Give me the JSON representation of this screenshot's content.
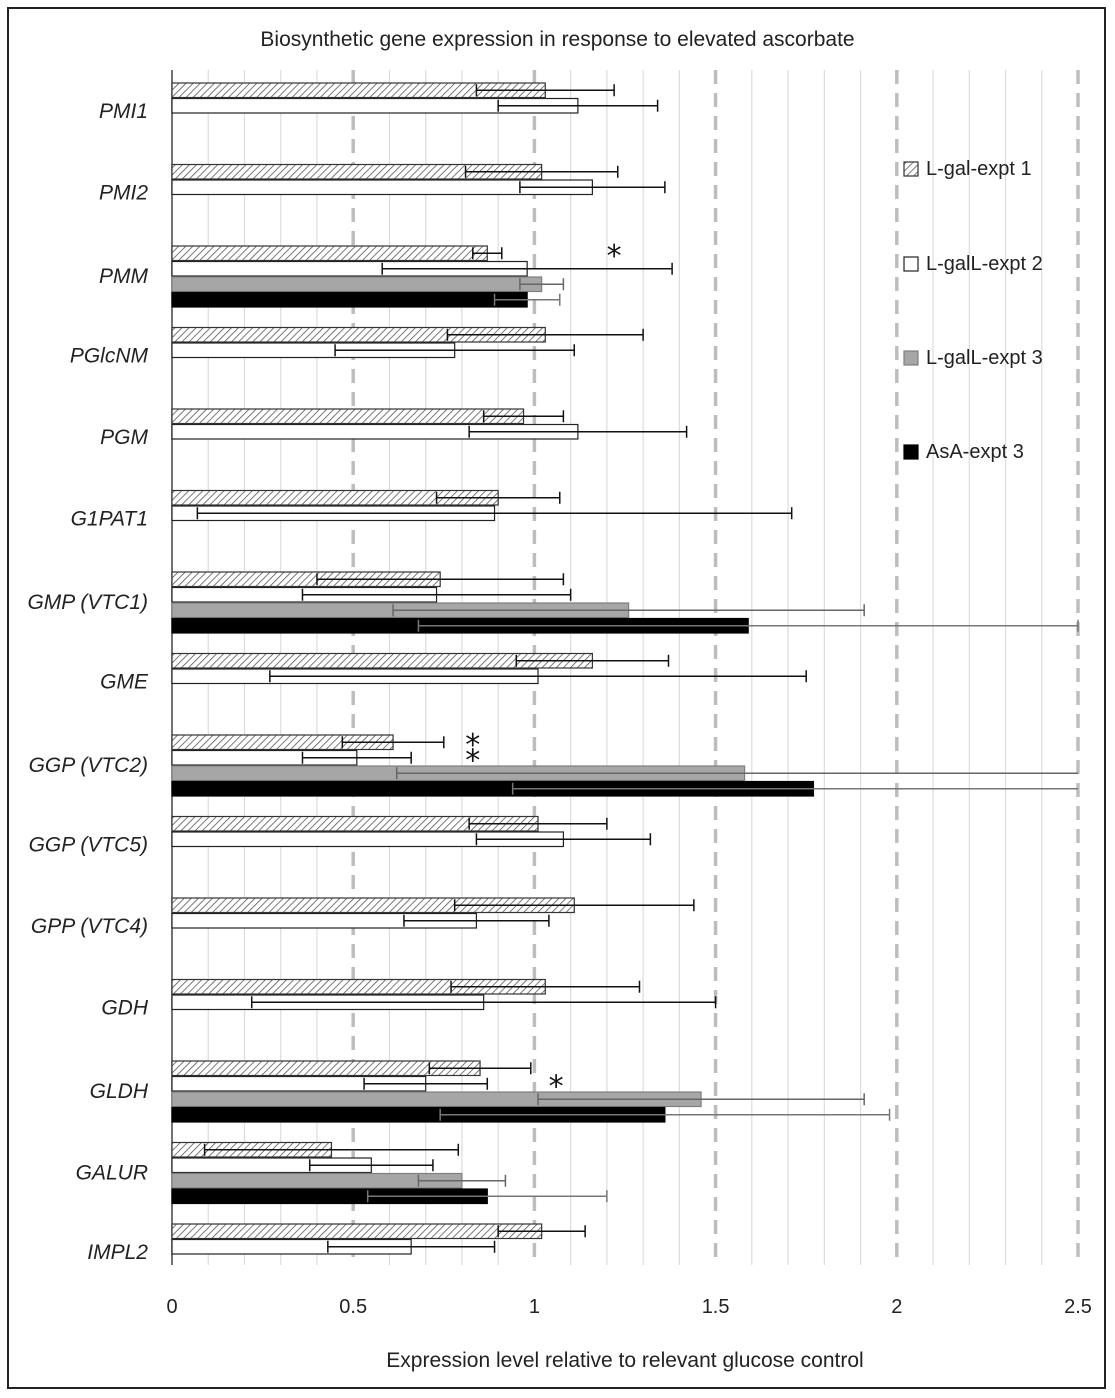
{
  "chart_data": {
    "type": "bar",
    "orientation": "horizontal",
    "title": "Biosynthetic gene expression in response to elevated ascorbate",
    "xlabel": "Expression level relative to relevant glucose control",
    "ylabel": "",
    "xlim": [
      0,
      2.5
    ],
    "x_ticks": [
      0,
      0.5,
      1,
      1.5,
      2,
      2.5
    ],
    "x_tick_labels": [
      "0",
      "0.5",
      "1",
      "1.5",
      "2",
      "2.5"
    ],
    "legend_position": "right",
    "series": [
      {
        "name": "L-gal-expt 1",
        "pattern": "hatched",
        "fill": "#ffffff",
        "stroke": "#333333"
      },
      {
        "name": "L-galL-expt 2",
        "pattern": "none",
        "fill": "#ffffff",
        "stroke": "#222222"
      },
      {
        "name": "L-galL-expt 3",
        "pattern": "none",
        "fill": "#a6a6a6",
        "stroke": "#7f7f7f"
      },
      {
        "name": "AsA-expt 3",
        "pattern": "none",
        "fill": "#000000",
        "stroke": "#000000"
      }
    ],
    "genes": [
      {
        "name": "PMI1",
        "bars": [
          {
            "series": 0,
            "value": 1.03,
            "error": 0.19
          },
          {
            "series": 1,
            "value": 1.12,
            "error": 0.22
          }
        ],
        "stars": []
      },
      {
        "name": "PMI2",
        "bars": [
          {
            "series": 0,
            "value": 1.02,
            "error": 0.21
          },
          {
            "series": 1,
            "value": 1.16,
            "error": 0.2
          }
        ],
        "stars": []
      },
      {
        "name": "PMM",
        "bars": [
          {
            "series": 0,
            "value": 0.87,
            "error": 0.04
          },
          {
            "series": 1,
            "value": 0.98,
            "error": 0.4
          },
          {
            "series": 2,
            "value": 1.02,
            "error": 0.06
          },
          {
            "series": 3,
            "value": 0.98,
            "error": 0.09
          }
        ],
        "stars": [
          {
            "value": 1.22,
            "bar": 0
          }
        ]
      },
      {
        "name": "PGlcNM",
        "bars": [
          {
            "series": 0,
            "value": 1.03,
            "error": 0.27
          },
          {
            "series": 1,
            "value": 0.78,
            "error": 0.33
          }
        ],
        "stars": []
      },
      {
        "name": "PGM",
        "bars": [
          {
            "series": 0,
            "value": 0.97,
            "error": 0.11
          },
          {
            "series": 1,
            "value": 1.12,
            "error": 0.3
          }
        ],
        "stars": []
      },
      {
        "name": "G1PAT1",
        "bars": [
          {
            "series": 0,
            "value": 0.9,
            "error": 0.17
          },
          {
            "series": 1,
            "value": 0.89,
            "error": 0.82
          }
        ],
        "stars": []
      },
      {
        "name": "GMP (VTC1)",
        "bars": [
          {
            "series": 0,
            "value": 0.74,
            "error": 0.34
          },
          {
            "series": 1,
            "value": 0.73,
            "error": 0.37
          },
          {
            "series": 2,
            "value": 1.26,
            "error": 0.65
          },
          {
            "series": 3,
            "value": 1.59,
            "error": 0.91
          }
        ],
        "stars": []
      },
      {
        "name": "GME",
        "bars": [
          {
            "series": 0,
            "value": 1.16,
            "error": 0.21
          },
          {
            "series": 1,
            "value": 1.01,
            "error": 0.74
          }
        ],
        "stars": []
      },
      {
        "name": "GGP (VTC2)",
        "bars": [
          {
            "series": 0,
            "value": 0.61,
            "error": 0.14
          },
          {
            "series": 1,
            "value": 0.51,
            "error": 0.15
          },
          {
            "series": 2,
            "value": 1.58,
            "error": 0.96
          },
          {
            "series": 3,
            "value": 1.77,
            "error": 0.83
          }
        ],
        "stars": [
          {
            "value": 0.83,
            "bar": 0
          },
          {
            "value": 0.83,
            "bar": 1
          }
        ]
      },
      {
        "name": "GGP (VTC5)",
        "bars": [
          {
            "series": 0,
            "value": 1.01,
            "error": 0.19
          },
          {
            "series": 1,
            "value": 1.08,
            "error": 0.24
          }
        ],
        "stars": []
      },
      {
        "name": "GPP (VTC4)",
        "bars": [
          {
            "series": 0,
            "value": 1.11,
            "error": 0.33
          },
          {
            "series": 1,
            "value": 0.84,
            "error": 0.2
          }
        ],
        "stars": []
      },
      {
        "name": "GDH",
        "bars": [
          {
            "series": 0,
            "value": 1.03,
            "error": 0.26
          },
          {
            "series": 1,
            "value": 0.86,
            "error": 0.64
          }
        ],
        "stars": []
      },
      {
        "name": "GLDH",
        "bars": [
          {
            "series": 0,
            "value": 0.85,
            "error": 0.14
          },
          {
            "series": 1,
            "value": 0.7,
            "error": 0.17
          },
          {
            "series": 2,
            "value": 1.46,
            "error": 0.45
          },
          {
            "series": 3,
            "value": 1.36,
            "error": 0.62
          }
        ],
        "stars": [
          {
            "value": 1.06,
            "bar": 1
          }
        ]
      },
      {
        "name": "GALUR",
        "bars": [
          {
            "series": 0,
            "value": 0.44,
            "error": 0.35
          },
          {
            "series": 1,
            "value": 0.55,
            "error": 0.17
          },
          {
            "series": 2,
            "value": 0.8,
            "error": 0.12
          },
          {
            "series": 3,
            "value": 0.87,
            "error": 0.33
          }
        ],
        "stars": []
      },
      {
        "name": "IMPL2",
        "bars": [
          {
            "series": 0,
            "value": 1.02,
            "error": 0.12
          },
          {
            "series": 1,
            "value": 0.66,
            "error": 0.23
          }
        ],
        "stars": []
      }
    ],
    "significance_marker": "*"
  }
}
